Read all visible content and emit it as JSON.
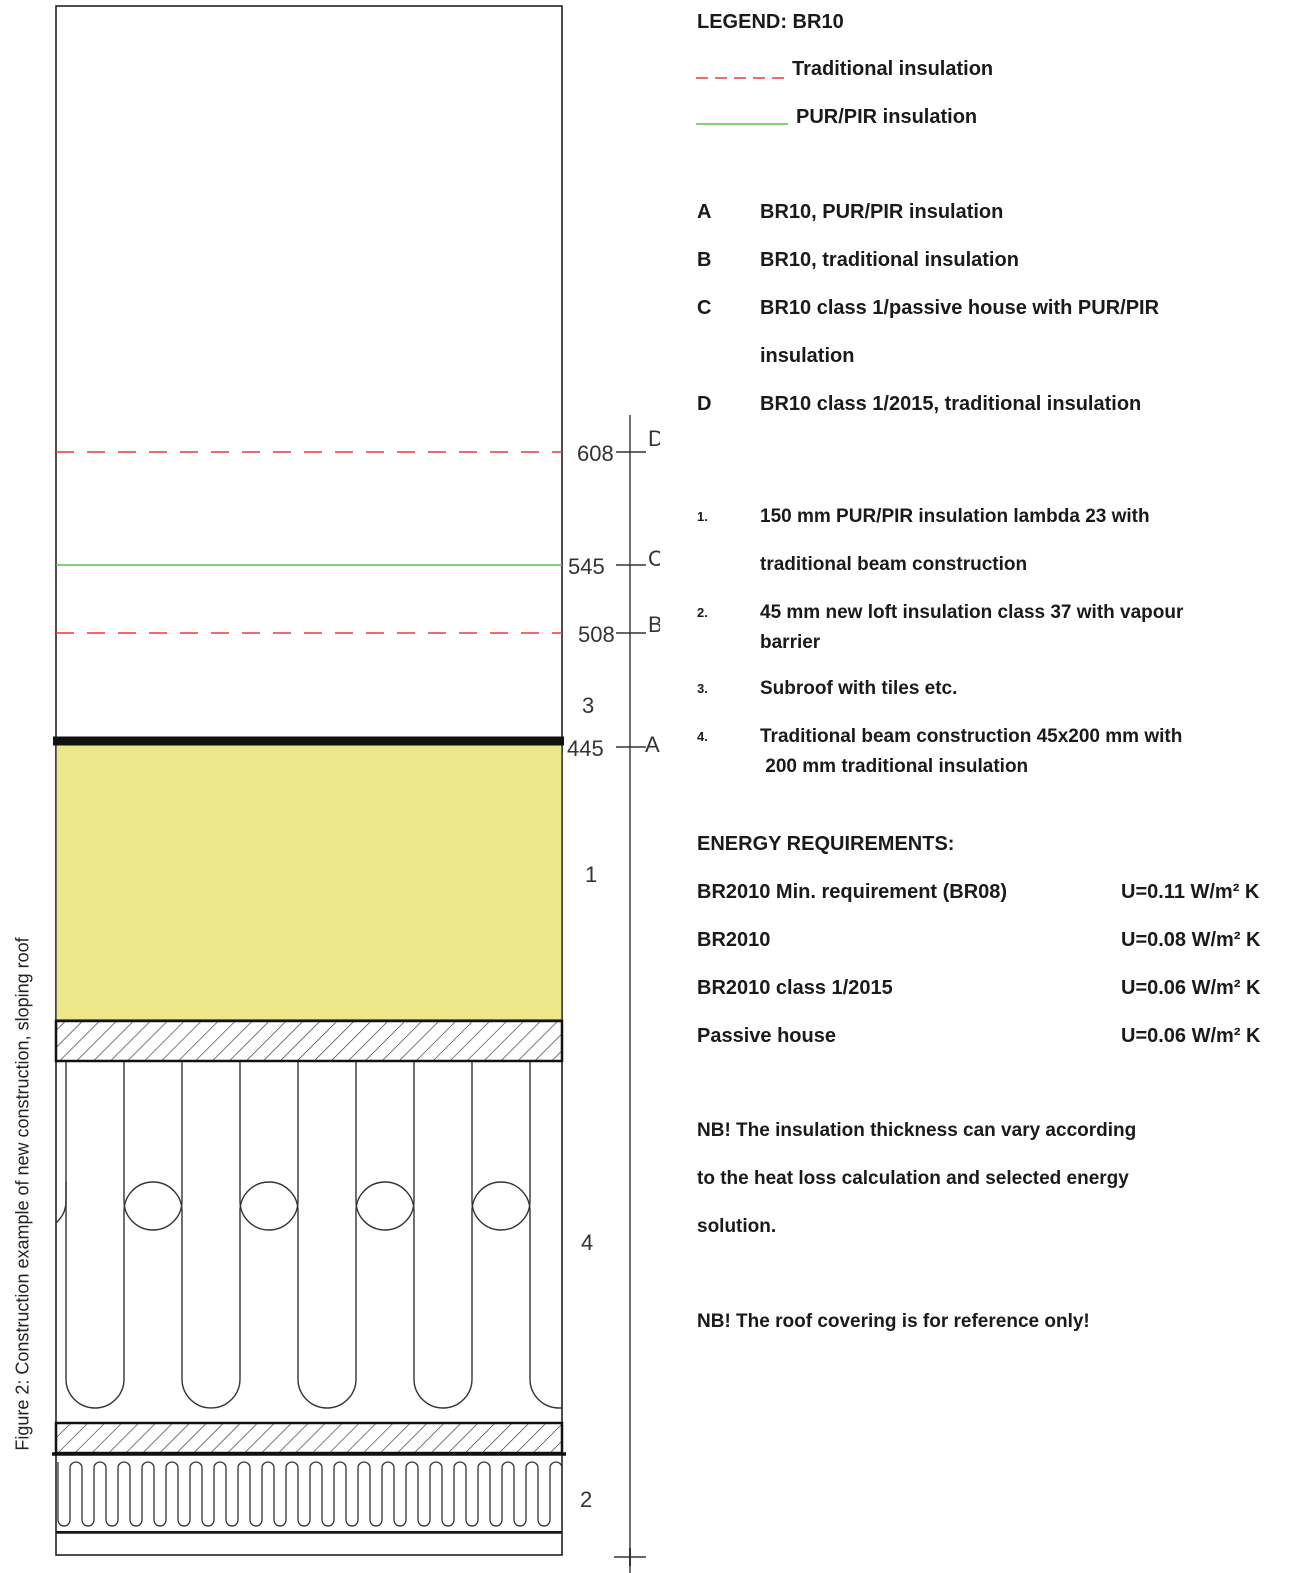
{
  "legend": {
    "title": "LEGEND: BR10",
    "traditional_label": "Traditional insulation",
    "pur_label": "PUR/PIR insulation",
    "traditional_color": "#e83a3a",
    "pur_color": "#5cbf4a"
  },
  "levels": [
    {
      "letter": "A",
      "description": "BR10, PUR/PIR insulation"
    },
    {
      "letter": "B",
      "description": "BR10, traditional insulation"
    },
    {
      "letter": "C",
      "description": "BR10 class 1/passive house with PUR/PIR",
      "description_cont": "insulation"
    },
    {
      "letter": "D",
      "description": "BR10 class 1/2015, traditional insulation"
    }
  ],
  "layers": [
    {
      "num": "1.",
      "line1": "150 mm PUR/PIR insulation lambda 23 with",
      "line2": "traditional beam construction"
    },
    {
      "num": "2.",
      "line1": "45 mm new loft insulation class 37 with vapour",
      "line2": "barrier"
    },
    {
      "num": "3.",
      "line1": "Subroof with tiles etc.",
      "line2": ""
    },
    {
      "num": "4.",
      "line1": "Traditional beam construction 45x200 mm with",
      "line2": " 200 mm traditional insulation"
    }
  ],
  "energy": {
    "title": "ENERGY REQUIREMENTS:",
    "rows": [
      {
        "label": "BR2010 Min. requirement (BR08)",
        "value": "U=0.11 W/m² K"
      },
      {
        "label": "BR2010",
        "value": "U=0.08 W/m² K"
      },
      {
        "label": "BR2010 class 1/2015",
        "value": "U=0.06 W/m² K"
      },
      {
        "label": "Passive house",
        "value": "U=0.06 W/m² K"
      }
    ]
  },
  "notes": {
    "note1_line1": "NB! The insulation thickness can vary according",
    "note1_line2": "to the heat loss calculation and selected energy",
    "note1_line3": "solution.",
    "note2": "NB! The roof covering is for reference only!"
  },
  "caption": "Figure 2: Construction example of new construction, sloping roof",
  "diagram": {
    "dimensions": [
      {
        "value": "608",
        "letter": "D"
      },
      {
        "value": "545",
        "letter": "C"
      },
      {
        "value": "508",
        "letter": "B"
      },
      {
        "value": "445",
        "letter": "A"
      }
    ],
    "layer_labels": [
      "3",
      "1",
      "4",
      "2"
    ],
    "insulation_fill": "#ece78a"
  }
}
